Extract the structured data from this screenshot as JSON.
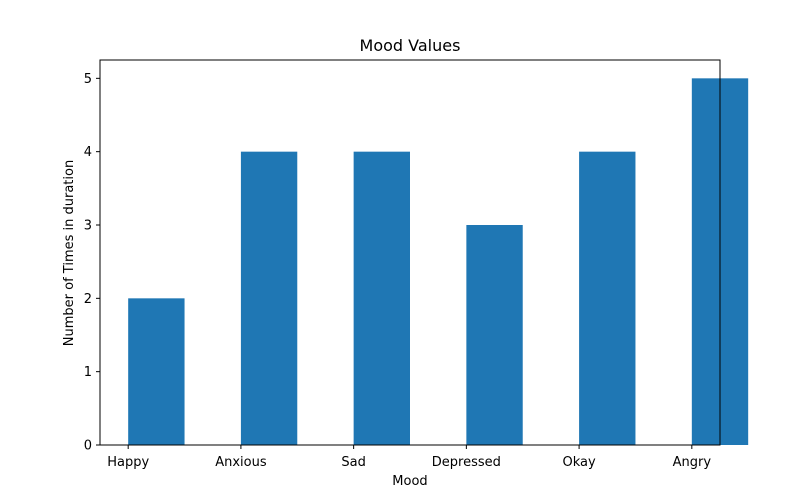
{
  "chart_data": {
    "type": "bar",
    "title": "Mood Values",
    "xlabel": "Mood",
    "ylabel": "Number of Times in duration",
    "x_tick_labels": [
      "Happy",
      "Anxious",
      "Sad",
      "Depressed",
      "Okay",
      "Angry"
    ],
    "bars": [
      {
        "x": 0.25,
        "value": 2
      },
      {
        "x": 1.25,
        "value": 4
      },
      {
        "x": 2.25,
        "value": 4
      },
      {
        "x": 3.25,
        "value": 3
      },
      {
        "x": 4.25,
        "value": 4
      },
      {
        "x": 5.25,
        "value": 5
      }
    ],
    "bar_width": 0.5,
    "yticks": [
      0,
      1,
      2,
      3,
      4,
      5
    ],
    "ylim": [
      0,
      5.25
    ],
    "xlim": [
      -0.25,
      5.25
    ],
    "grid": false,
    "colors": {
      "bar": "#1f77b4",
      "axes": "#000000",
      "background": "#ffffff"
    }
  }
}
